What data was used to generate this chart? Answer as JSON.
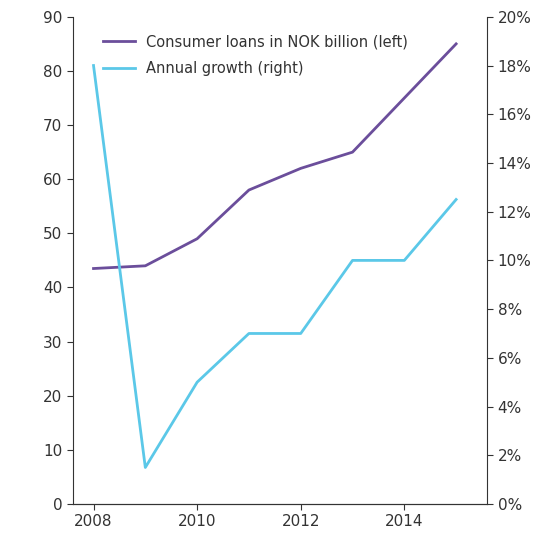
{
  "consumer_loans_years": [
    2008,
    2009,
    2010,
    2011,
    2012,
    2013,
    2014,
    2015
  ],
  "consumer_loans_values": [
    43.5,
    44.0,
    49.0,
    58.0,
    62.0,
    65.0,
    75.0,
    85.0
  ],
  "annual_growth_years": [
    2008,
    2009,
    2010,
    2011,
    2012,
    2013,
    2014,
    2015
  ],
  "annual_growth_values": [
    18.0,
    1.5,
    5.0,
    7.0,
    7.0,
    10.0,
    10.0,
    12.5
  ],
  "consumer_loans_color": "#6B4E9B",
  "annual_growth_color": "#5BC8E8",
  "left_ylim": [
    0,
    90
  ],
  "right_ylim": [
    0,
    20
  ],
  "left_yticks": [
    0,
    10,
    20,
    30,
    40,
    50,
    60,
    70,
    80,
    90
  ],
  "right_yticks": [
    0,
    2,
    4,
    6,
    8,
    10,
    12,
    14,
    16,
    18,
    20
  ],
  "xticks": [
    2008,
    2010,
    2012,
    2014
  ],
  "xlim": [
    2007.6,
    2015.6
  ],
  "legend_consumer": "Consumer loans in NOK billion (left)",
  "legend_growth": "Annual growth (right)",
  "linewidth": 2.0
}
